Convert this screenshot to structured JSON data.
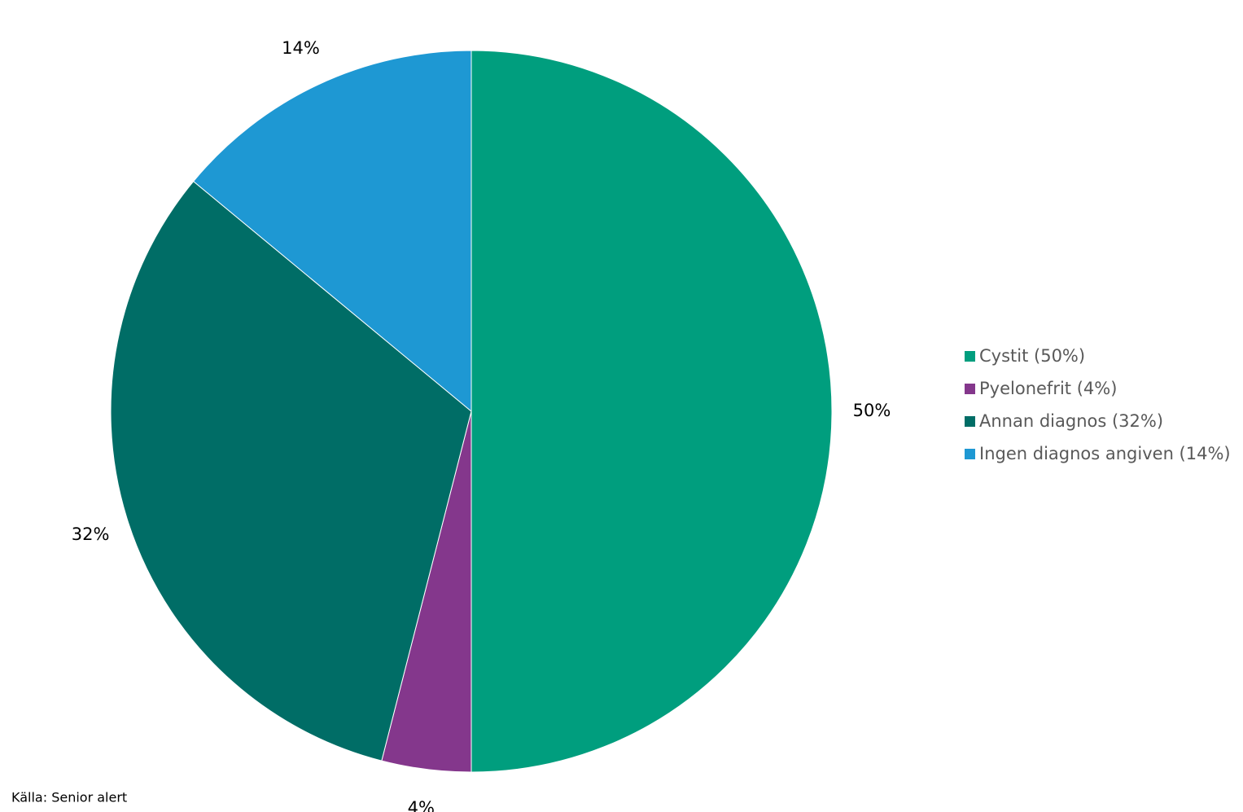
{
  "chart_data": {
    "type": "pie",
    "categories": [
      "Cystit (50%)",
      "Pyelonefrit (4%)",
      "Annan diagnos (32%)",
      "Ingen diagnos angiven (14%)"
    ],
    "values": [
      50,
      4,
      32,
      14
    ],
    "value_labels": [
      "50%",
      "4%",
      "32%",
      "14%"
    ],
    "colors": [
      "#009e7e",
      "#84378c",
      "#006d66",
      "#1e98d3"
    ],
    "legend": "right",
    "source": "Källa: Senior alert"
  }
}
